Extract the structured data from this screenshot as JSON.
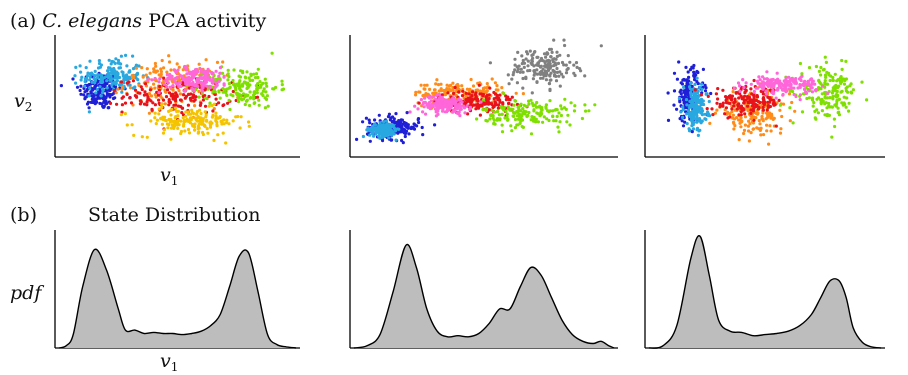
{
  "panel_a": {
    "letter": "(a)",
    "title_species": "C. elegans",
    "title_rest": "PCA activity",
    "ylabel_var": "v",
    "ylabel_sub": "2",
    "xlabel_var": "v",
    "xlabel_sub": "1"
  },
  "panel_b": {
    "letter": "(b)",
    "title": "State Distribution",
    "ylabel": "pdf",
    "xlabel_var": "v",
    "xlabel_sub": "1"
  },
  "colors": {
    "axis": "#000000",
    "fill": "#bdbdbd",
    "states": [
      "#1f1fd6",
      "#29a8e0",
      "#ff8c1a",
      "#e8121a",
      "#f5c400",
      "#7fe000",
      "#ff66d9",
      "#808080"
    ]
  },
  "chart_data": [
    {
      "type": "scatter",
      "panel": "a-1",
      "xlabel": "v1",
      "ylabel": "v2",
      "axes_ticks": false,
      "series": [
        {
          "color": "#1f1fd6",
          "center": [
            -0.65,
            0.1
          ],
          "spread": [
            0.18,
            0.35
          ]
        },
        {
          "color": "#29a8e0",
          "center": [
            -0.55,
            0.35
          ],
          "spread": [
            0.25,
            0.3
          ]
        },
        {
          "color": "#ff8c1a",
          "center": [
            -0.05,
            0.2
          ],
          "spread": [
            0.4,
            0.4
          ]
        },
        {
          "color": "#e8121a",
          "center": [
            0.0,
            0.0
          ],
          "spread": [
            0.45,
            0.3
          ]
        },
        {
          "color": "#f5c400",
          "center": [
            0.1,
            -0.45
          ],
          "spread": [
            0.45,
            0.25
          ]
        },
        {
          "color": "#7fe000",
          "center": [
            0.55,
            0.15
          ],
          "spread": [
            0.3,
            0.35
          ]
        },
        {
          "color": "#ff66d9",
          "center": [
            0.15,
            0.3
          ],
          "spread": [
            0.3,
            0.2
          ]
        }
      ]
    },
    {
      "type": "scatter",
      "panel": "a-2",
      "axes_ticks": false,
      "series": [
        {
          "color": "#1f1fd6",
          "center": [
            -0.7,
            -0.55
          ],
          "spread": [
            0.2,
            0.2
          ]
        },
        {
          "color": "#29a8e0",
          "center": [
            -0.78,
            -0.6
          ],
          "spread": [
            0.1,
            0.12
          ]
        },
        {
          "color": "#ff8c1a",
          "center": [
            -0.2,
            0.05
          ],
          "spread": [
            0.35,
            0.2
          ]
        },
        {
          "color": "#e8121a",
          "center": [
            -0.05,
            -0.1
          ],
          "spread": [
            0.3,
            0.2
          ]
        },
        {
          "color": "#7fe000",
          "center": [
            0.35,
            -0.3
          ],
          "spread": [
            0.35,
            0.25
          ]
        },
        {
          "color": "#ff66d9",
          "center": [
            -0.3,
            -0.15
          ],
          "spread": [
            0.2,
            0.15
          ]
        },
        {
          "color": "#808080",
          "center": [
            0.45,
            0.5
          ],
          "spread": [
            0.25,
            0.35
          ]
        }
      ]
    },
    {
      "type": "scatter",
      "panel": "a-3",
      "axes_ticks": false,
      "series": [
        {
          "color": "#1f1fd6",
          "center": [
            -0.65,
            0.0
          ],
          "spread": [
            0.12,
            0.5
          ]
        },
        {
          "color": "#29a8e0",
          "center": [
            -0.6,
            -0.2
          ],
          "spread": [
            0.1,
            0.4
          ]
        },
        {
          "color": "#ff8c1a",
          "center": [
            -0.1,
            -0.3
          ],
          "spread": [
            0.3,
            0.35
          ]
        },
        {
          "color": "#e8121a",
          "center": [
            -0.15,
            -0.1
          ],
          "spread": [
            0.3,
            0.25
          ]
        },
        {
          "color": "#7fe000",
          "center": [
            0.55,
            0.05
          ],
          "spread": [
            0.25,
            0.45
          ]
        },
        {
          "color": "#ff66d9",
          "center": [
            0.15,
            0.2
          ],
          "spread": [
            0.3,
            0.15
          ]
        }
      ]
    },
    {
      "type": "area",
      "panel": "b-1",
      "xlabel": "v1",
      "ylabel": "pdf",
      "x": [
        0,
        0.03,
        0.06,
        0.1,
        0.15,
        0.2,
        0.25,
        0.28,
        0.32,
        0.36,
        0.4,
        0.44,
        0.48,
        0.52,
        0.56,
        0.6,
        0.64,
        0.68,
        0.72,
        0.76,
        0.8,
        0.84,
        0.88,
        0.92,
        0.96,
        1.0
      ],
      "y": [
        0,
        0.02,
        0.12,
        0.55,
        0.88,
        0.7,
        0.35,
        0.16,
        0.16,
        0.13,
        0.14,
        0.13,
        0.13,
        0.12,
        0.13,
        0.15,
        0.2,
        0.3,
        0.55,
        0.82,
        0.85,
        0.5,
        0.12,
        0.03,
        0.01,
        0
      ]
    },
    {
      "type": "area",
      "panel": "b-2",
      "x": [
        0,
        0.05,
        0.1,
        0.15,
        0.2,
        0.24,
        0.28,
        0.32,
        0.36,
        0.4,
        0.44,
        0.48,
        0.52,
        0.56,
        0.6,
        0.64,
        0.68,
        0.72,
        0.76,
        0.8,
        0.84,
        0.88,
        0.92,
        0.95,
        0.98,
        1.0
      ],
      "y": [
        0,
        0.02,
        0.12,
        0.5,
        0.92,
        0.72,
        0.35,
        0.15,
        0.1,
        0.11,
        0.1,
        0.13,
        0.22,
        0.35,
        0.35,
        0.55,
        0.72,
        0.65,
        0.45,
        0.25,
        0.12,
        0.06,
        0.04,
        0.06,
        0.02,
        0
      ]
    },
    {
      "type": "area",
      "panel": "b-3",
      "x": [
        0,
        0.06,
        0.12,
        0.18,
        0.22,
        0.26,
        0.3,
        0.35,
        0.4,
        0.45,
        0.5,
        0.55,
        0.6,
        0.65,
        0.7,
        0.74,
        0.78,
        0.82,
        0.85,
        0.88,
        0.92,
        0.96,
        1.0
      ],
      "y": [
        0,
        0.02,
        0.2,
        0.8,
        1.0,
        0.65,
        0.25,
        0.15,
        0.14,
        0.11,
        0.12,
        0.13,
        0.15,
        0.2,
        0.3,
        0.45,
        0.6,
        0.6,
        0.45,
        0.18,
        0.05,
        0.01,
        0
      ]
    }
  ]
}
